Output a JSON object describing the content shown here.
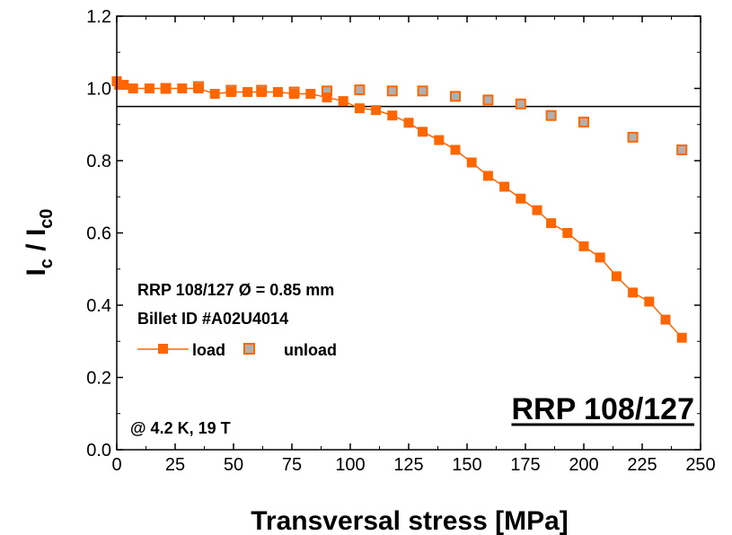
{
  "chart_data": {
    "type": "scatter",
    "xlabel": "Transversal stress [MPa]",
    "ylabel": {
      "main": "I",
      "sub_numer": "c",
      "sep": " / I",
      "sub_denom": "c0"
    },
    "xlim": [
      0,
      250
    ],
    "ylim": [
      0.0,
      1.2
    ],
    "x_ticks": [
      "0",
      "25",
      "50",
      "75",
      "100",
      "125",
      "150",
      "175",
      "200",
      "225",
      "250"
    ],
    "y_ticks": [
      "0.0",
      "0.2",
      "0.4",
      "0.6",
      "0.8",
      "1.0",
      "1.2"
    ],
    "reference_line_y": 0.95,
    "grid": false,
    "series": [
      {
        "name": "load",
        "marker": "filled-square",
        "line": true,
        "color": "#FF6600",
        "points": [
          [
            0,
            1.02
          ],
          [
            1,
            1.01
          ],
          [
            3,
            1.01
          ],
          [
            7,
            1.0
          ],
          [
            14,
            1.0
          ],
          [
            21,
            1.0
          ],
          [
            28,
            1.0
          ],
          [
            35,
            1.0
          ],
          [
            42,
            0.985
          ],
          [
            49,
            0.99
          ],
          [
            56,
            0.99
          ],
          [
            62,
            0.99
          ],
          [
            69,
            0.99
          ],
          [
            76,
            0.985
          ],
          [
            83,
            0.985
          ],
          [
            90,
            0.975
          ],
          [
            97,
            0.965
          ],
          [
            104,
            0.945
          ],
          [
            111,
            0.94
          ],
          [
            118,
            0.925
          ],
          [
            125,
            0.905
          ],
          [
            131,
            0.88
          ],
          [
            138,
            0.857
          ],
          [
            145,
            0.83
          ],
          [
            152,
            0.795
          ],
          [
            159,
            0.758
          ],
          [
            166,
            0.728
          ],
          [
            173,
            0.695
          ],
          [
            180,
            0.663
          ],
          [
            186,
            0.627
          ],
          [
            193,
            0.6
          ],
          [
            200,
            0.563
          ],
          [
            207,
            0.532
          ],
          [
            214,
            0.48
          ],
          [
            221,
            0.435
          ],
          [
            228,
            0.41
          ],
          [
            235,
            0.36
          ],
          [
            242,
            0.31
          ]
        ]
      },
      {
        "name": "unload",
        "marker": "gray-square-orange-edge",
        "line": false,
        "color": "#FF6600",
        "fill": "#B0B0B0",
        "points": [
          [
            21,
            1.0
          ],
          [
            35,
            1.005
          ],
          [
            49,
            0.995
          ],
          [
            62,
            0.995
          ],
          [
            76,
            0.99
          ],
          [
            90,
            0.993
          ],
          [
            104,
            0.996
          ],
          [
            118,
            0.993
          ],
          [
            131,
            0.993
          ],
          [
            145,
            0.978
          ],
          [
            159,
            0.968
          ],
          [
            173,
            0.957
          ],
          [
            186,
            0.925
          ],
          [
            200,
            0.907
          ],
          [
            221,
            0.865
          ],
          [
            242,
            0.83
          ]
        ]
      }
    ],
    "legend_labels": [
      "load",
      "unload"
    ],
    "annotations": {
      "sample": "RRP 108/127 Ø = 0.85 mm",
      "billet": "Billet ID #A02U4014",
      "conditions": "@ 4.2 K, 19 T",
      "big_label": "RRP 108/127"
    }
  }
}
